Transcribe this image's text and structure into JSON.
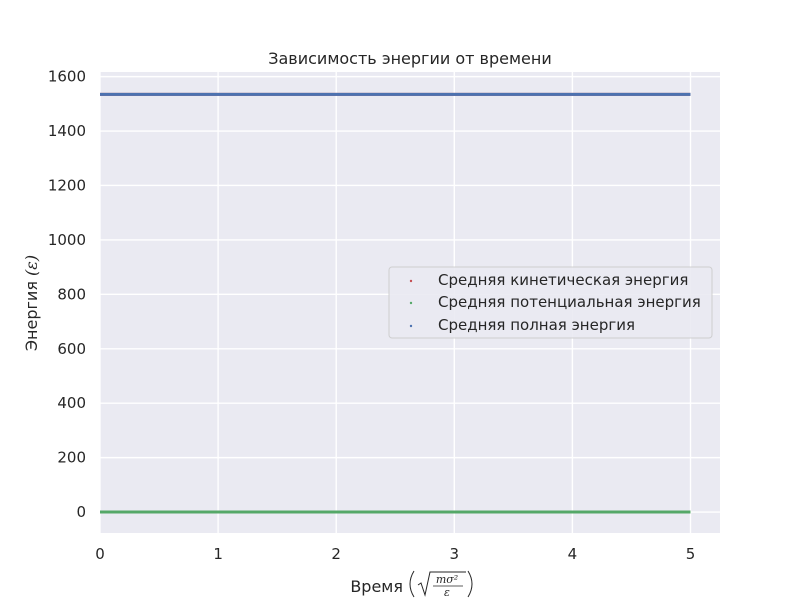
{
  "chart_data": {
    "type": "scatter",
    "title": "Зависимость энергии от времени",
    "xlabel": "Время",
    "xlabel_math": {
      "numerator": "mσ²",
      "denominator": "ε"
    },
    "ylabel": "Энергия",
    "ylabel_math": "(ε)",
    "xlim": [
      0,
      5.25
    ],
    "ylim": [
      -77,
      1617
    ],
    "xticks": [
      0,
      1,
      2,
      3,
      4,
      5
    ],
    "yticks": [
      0,
      200,
      400,
      600,
      800,
      1000,
      1200,
      1400,
      1600
    ],
    "grid": true,
    "legend_position": "center-right",
    "series": [
      {
        "name": "Средняя кинетическая энергия",
        "color": "#c44e52",
        "x": [
          0,
          5
        ],
        "y": [
          1535,
          1535
        ]
      },
      {
        "name": "Средняя потенциальная энергия",
        "color": "#55a868",
        "x": [
          0,
          5
        ],
        "y": [
          0,
          0
        ]
      },
      {
        "name": "Средняя полная энергия",
        "color": "#4c72b0",
        "x": [
          0,
          5
        ],
        "y": [
          1535,
          1535
        ]
      }
    ]
  }
}
